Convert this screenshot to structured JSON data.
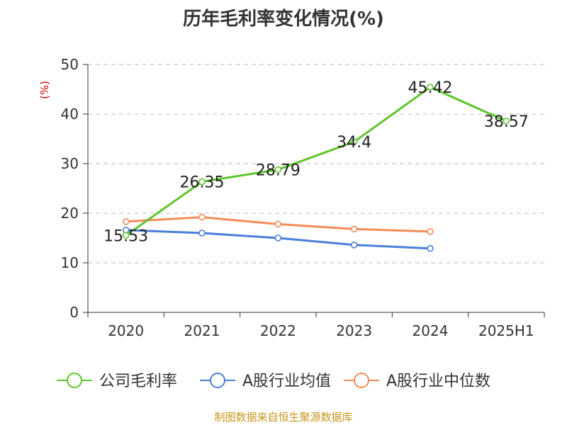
{
  "title": "历年毛利率变化情况(%)",
  "source": "制图数据来自恒生聚源数据库",
  "chart_data": {
    "type": "line",
    "title": "历年毛利率变化情况(%)",
    "ylabel": "(%)",
    "xlabel": "",
    "categories": [
      "2020",
      "2021",
      "2022",
      "2023",
      "2024",
      "2025H1"
    ],
    "ylim": [
      0,
      50
    ],
    "yticks": [
      0,
      10,
      20,
      30,
      40,
      50
    ],
    "grid": true,
    "legend_position": "bottom",
    "series": [
      {
        "name": "公司毛利率",
        "color": "#5ec52d",
        "values": [
          15.53,
          26.35,
          28.79,
          34.4,
          45.42,
          38.57
        ],
        "labels": [
          "15.53",
          "26.35",
          "28.79",
          "34.4",
          "45.42",
          "38.57"
        ]
      },
      {
        "name": "A股行业均值",
        "color": "#4a7fd9",
        "values": [
          16.6,
          16.0,
          15.0,
          13.6,
          12.9,
          null
        ],
        "labels": []
      },
      {
        "name": "A股行业中位数",
        "color": "#f58b57",
        "values": [
          18.3,
          19.2,
          17.8,
          16.8,
          16.3,
          null
        ],
        "labels": []
      }
    ]
  }
}
